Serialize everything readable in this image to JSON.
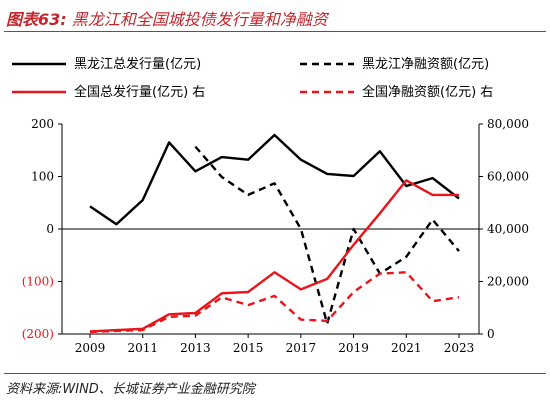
{
  "figure": {
    "label": "图表63:",
    "title": "黑龙江和全国城投债发行量和净融资",
    "source": "资料来源:WIND、长城证券产业金融研究院"
  },
  "chart_data": {
    "type": "line",
    "x": [
      2009,
      2010,
      2011,
      2012,
      2013,
      2014,
      2015,
      2016,
      2017,
      2018,
      2019,
      2020,
      2021,
      2022,
      2023
    ],
    "x_ticks": [
      "2009",
      "2011",
      "2013",
      "2015",
      "2017",
      "2019",
      "2021",
      "2023"
    ],
    "left_axis": {
      "ylim": [
        -200,
        200
      ],
      "ticks": [
        200,
        100,
        0,
        -100,
        -200
      ],
      "tick_labels": [
        "200",
        "100",
        "0",
        "(100)",
        "(200)"
      ],
      "positive_color": "#000000",
      "negative_color": "#e8161b"
    },
    "right_axis": {
      "ylim": [
        0,
        80000
      ],
      "ticks": [
        80000,
        60000,
        40000,
        20000,
        0
      ],
      "tick_labels": [
        "80,000",
        "60,000",
        "40,000",
        "20,000",
        "0"
      ]
    },
    "series": [
      {
        "name": "黑龙江总发行量(亿元)",
        "axis": "left",
        "color": "#000000",
        "dash": false,
        "values": [
          43,
          9,
          55,
          165,
          110,
          137,
          132,
          179,
          132,
          105,
          101,
          148,
          82,
          97,
          58
        ]
      },
      {
        "name": "黑龙江净融资额(亿元)",
        "axis": "left",
        "color": "#000000",
        "dash": true,
        "values": [
          null,
          null,
          null,
          null,
          157,
          99,
          65,
          87,
          0,
          -180,
          0,
          -85,
          -53,
          18,
          -42
        ]
      },
      {
        "name": "全国总发行量(亿元) 右",
        "axis": "right",
        "color": "#e8161b",
        "dash": false,
        "values": [
          1000,
          1500,
          2000,
          7500,
          8000,
          15500,
          16000,
          23500,
          17000,
          21000,
          34000,
          46000,
          58500,
          53000,
          53000
        ]
      },
      {
        "name": "全国净融资额(亿元) 右",
        "axis": "right",
        "color": "#e8161b",
        "dash": true,
        "values": [
          800,
          1200,
          1500,
          6500,
          7000,
          14000,
          11000,
          14500,
          5500,
          5000,
          16000,
          23000,
          23500,
          12500,
          14000
        ]
      }
    ],
    "legend_position": "top",
    "grid": false
  }
}
